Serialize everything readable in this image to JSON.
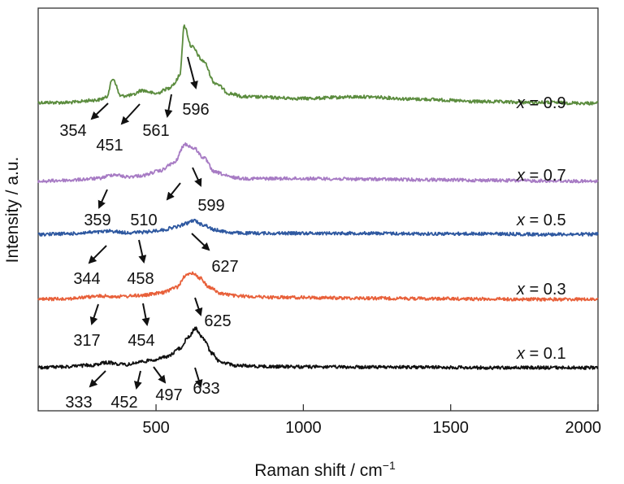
{
  "chart_data": {
    "type": "line",
    "xlabel": "Raman shift / cm",
    "xlabel_sup": "−1",
    "ylabel": "Intensity / a.u.",
    "xlim": [
      100,
      2000
    ],
    "xticks": [
      500,
      1000,
      1500,
      2000
    ],
    "xtick_labels": [
      "500",
      "1000",
      "1500",
      "2000"
    ],
    "y_ticks_shown": false,
    "grid": false,
    "series": [
      {
        "name": "x = 0.9",
        "x_var": "x",
        "value_label": " = 0.9",
        "color": "#5b8c3e",
        "x": [
          100,
          200,
          300,
          330,
          354,
          380,
          420,
          451,
          500,
          540,
          561,
          580,
          596,
          620,
          660,
          700,
          750,
          800,
          1000,
          1200,
          1400,
          1600,
          1800,
          2000
        ],
        "offset": [
          0.01,
          0.01,
          0.04,
          0.07,
          0.3,
          0.09,
          0.1,
          0.16,
          0.12,
          0.18,
          0.24,
          0.34,
          0.95,
          0.7,
          0.52,
          0.25,
          0.12,
          0.08,
          0.06,
          0.08,
          0.05,
          0.02,
          0.01,
          0.0
        ],
        "peaks": [
          354,
          451,
          561,
          596
        ]
      },
      {
        "name": "x = 0.7",
        "x_var": "x",
        "value_label": " = 0.7",
        "color": "#a77bc4",
        "x": [
          100,
          200,
          300,
          359,
          400,
          450,
          510,
          560,
          599,
          630,
          660,
          700,
          760,
          800,
          1000,
          1200,
          1400,
          1600,
          1800,
          2000
        ],
        "offset": [
          0.0,
          0.02,
          0.05,
          0.12,
          0.08,
          0.1,
          0.18,
          0.32,
          0.65,
          0.58,
          0.42,
          0.16,
          0.07,
          0.05,
          0.05,
          0.04,
          0.03,
          0.02,
          0.01,
          0.0
        ],
        "peaks": [
          359,
          510,
          599
        ]
      },
      {
        "name": "x = 0.5",
        "x_var": "x",
        "value_label": " = 0.5",
        "color": "#2e58a0",
        "x": [
          100,
          200,
          300,
          344,
          400,
          458,
          520,
          570,
          600,
          627,
          660,
          700,
          760,
          800,
          1000,
          1200,
          1400,
          1600,
          1800,
          2000
        ],
        "offset": [
          0.0,
          0.01,
          0.04,
          0.06,
          0.03,
          0.04,
          0.08,
          0.14,
          0.2,
          0.26,
          0.18,
          0.08,
          0.03,
          0.02,
          0.02,
          0.02,
          0.01,
          0.01,
          0.0,
          0.0
        ],
        "peaks": [
          344,
          458,
          627
        ]
      },
      {
        "name": "x = 0.3",
        "x_var": "x",
        "value_label": " = 0.3",
        "color": "#e8603a",
        "x": [
          100,
          200,
          317,
          380,
          454,
          520,
          570,
          600,
          625,
          650,
          680,
          720,
          780,
          900,
          1200,
          1400,
          1600,
          1800,
          2000
        ],
        "offset": [
          0.0,
          0.02,
          0.08,
          0.07,
          0.1,
          0.16,
          0.3,
          0.58,
          0.65,
          0.52,
          0.3,
          0.14,
          0.08,
          0.05,
          0.03,
          0.02,
          0.01,
          0.0,
          0.0
        ],
        "peaks": [
          317,
          454,
          625
        ]
      },
      {
        "name": "x = 0.1",
        "x_var": "x",
        "value_label": " = 0.1",
        "color": "#111111",
        "x": [
          100,
          200,
          280,
          333,
          400,
          452,
          497,
          540,
          580,
          610,
          633,
          660,
          690,
          720,
          780,
          900,
          1200,
          1400,
          1600,
          1800,
          2000
        ],
        "offset": [
          0.0,
          0.02,
          0.05,
          0.1,
          0.06,
          0.12,
          0.16,
          0.22,
          0.38,
          0.6,
          0.78,
          0.58,
          0.28,
          0.1,
          0.04,
          0.02,
          0.01,
          0.01,
          0.0,
          0.0,
          0.0
        ],
        "peaks": [
          333,
          452,
          497,
          633
        ]
      }
    ]
  }
}
